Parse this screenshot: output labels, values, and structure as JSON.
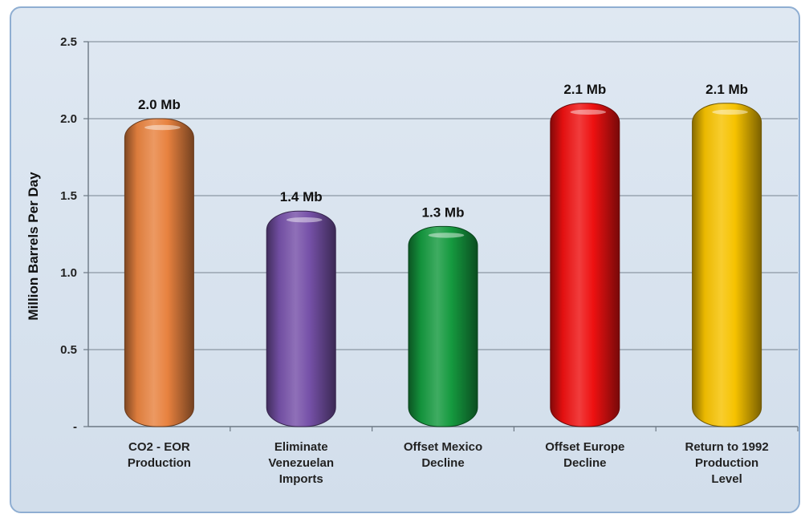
{
  "chart_data": {
    "type": "bar",
    "categories": [
      [
        "CO2 - EOR",
        "Production"
      ],
      [
        "Eliminate",
        "Venezuelan",
        "Imports"
      ],
      [
        "Offset Mexico",
        "Decline"
      ],
      [
        "Offset Europe",
        "Decline"
      ],
      [
        "Return to 1992",
        "Production",
        "Level"
      ]
    ],
    "values": [
      2.0,
      1.4,
      1.3,
      2.1,
      2.1
    ],
    "data_labels": [
      "2.0 Mb",
      "1.4 Mb",
      "1.3 Mb",
      "2.1 Mb",
      "2.1 Mb"
    ],
    "colors": [
      "#e8823f",
      "#7651a8",
      "#159a3f",
      "#ee1111",
      "#f6c200"
    ],
    "ylabel": "Million Barrels Per Day",
    "xlabel": "",
    "title": "",
    "ylim": [
      0,
      2.5
    ],
    "yticks": [
      0,
      0.5,
      1.0,
      1.5,
      2.0,
      2.5
    ],
    "ytick_labels": [
      "-",
      "0.5",
      "1.0",
      "1.5",
      "2.0",
      "2.5"
    ],
    "grid": true,
    "legend": "none"
  }
}
